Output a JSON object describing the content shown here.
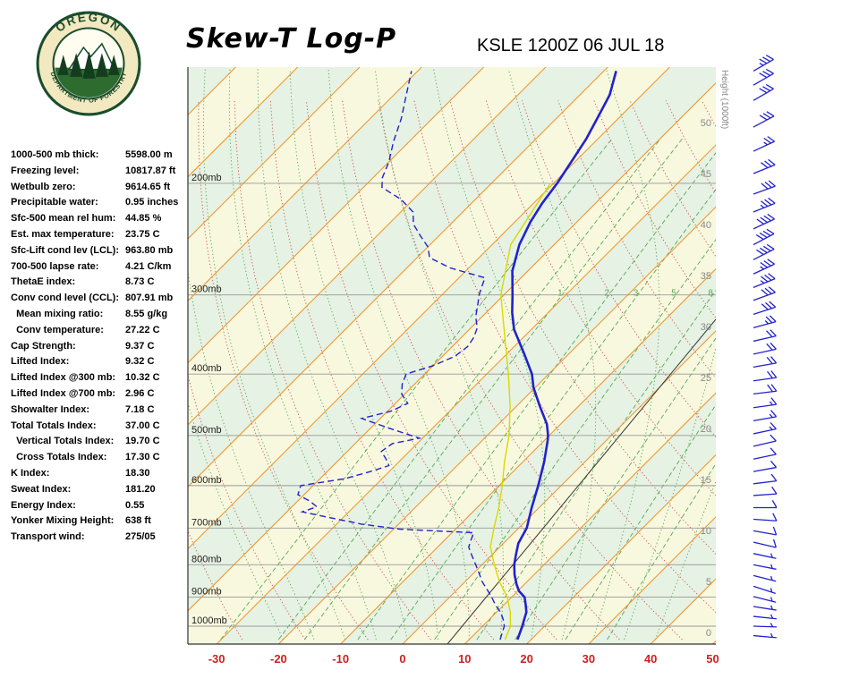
{
  "header": {
    "title": "Skew-T Log-P",
    "station": "KSLE 1200Z 06 JUL 18",
    "logo_text_top": "OREGON",
    "logo_text_bottom": "DEPARTMENT OF FORESTRY"
  },
  "indices": [
    {
      "label": "1000-500 mb thick:",
      "value": "5598.00 m"
    },
    {
      "label": "Freezing level:",
      "value": "10817.87 ft"
    },
    {
      "label": "Wetbulb zero:",
      "value": "9614.65 ft"
    },
    {
      "label": "Precipitable water:",
      "value": "0.95 inches"
    },
    {
      "label": "Sfc-500 mean rel hum:",
      "value": "44.85 %"
    },
    {
      "label": "Est. max temperature:",
      "value": "23.75 C"
    },
    {
      "label": "Sfc-Lift cond lev (LCL):",
      "value": "963.80 mb"
    },
    {
      "label": "700-500 lapse rate:",
      "value": "4.21 C/km"
    },
    {
      "label": "ThetaE index:",
      "value": "8.73 C"
    },
    {
      "label": "Conv cond level (CCL):",
      "value": "807.91 mb"
    },
    {
      "label": "  Mean mixing ratio:",
      "value": "8.55 g/kg"
    },
    {
      "label": "  Conv temperature:",
      "value": "27.22 C"
    },
    {
      "label": "Cap Strength:",
      "value": "9.37 C"
    },
    {
      "label": "Lifted Index:",
      "value": "9.32 C"
    },
    {
      "label": "Lifted Index @300 mb:",
      "value": "10.32 C"
    },
    {
      "label": "Lifted Index @700 mb:",
      "value": "2.96 C"
    },
    {
      "label": "Showalter Index:",
      "value": "7.18 C"
    },
    {
      "label": "Total Totals Index:",
      "value": "37.00 C"
    },
    {
      "label": "  Vertical Totals Index:",
      "value": "19.70 C"
    },
    {
      "label": "  Cross Totals Index:",
      "value": "17.30 C"
    },
    {
      "label": "K Index:",
      "value": "18.30"
    },
    {
      "label": "Sweat Index:",
      "value": "181.20"
    },
    {
      "label": "Energy Index:",
      "value": "0.55"
    },
    {
      "label": "Yonker Mixing Height:",
      "value": "638 ft"
    },
    {
      "label": "Transport wind:",
      "value": "275/05"
    }
  ],
  "chart_data": {
    "type": "skewt-logp",
    "title": "Skew-T Log-P",
    "station": "KSLE 1200Z 06 JUL 18",
    "temp_axis_c": [
      -30,
      -20,
      -10,
      0,
      10,
      20,
      30,
      40,
      50
    ],
    "pressure_levels_mb": [
      200,
      300,
      400,
      500,
      600,
      700,
      800,
      900,
      1000
    ],
    "pressure_label_suffix": "mb",
    "height_axis": {
      "label": "Height (1000ft)",
      "ticks_kft": [
        0,
        5,
        10,
        15,
        20,
        25,
        30,
        35,
        40,
        45,
        50
      ]
    },
    "isotherm_step_c": 10,
    "mixing_ratio_lines_gkg": [
      0.3,
      0.7,
      1,
      2,
      3,
      5,
      8,
      12,
      20,
      30
    ],
    "mixing_ratio_labels_gkg": [
      1,
      2,
      3,
      5,
      8
    ],
    "dry_adiabats_theta_c": {
      "from": -60,
      "to": 200,
      "step": 10
    },
    "moist_adiabats_t0_c": {
      "from": -20,
      "to": 40,
      "step": 5
    },
    "temperature_profile": [
      [
        1050,
        17.8
      ],
      [
        1000,
        16.4
      ],
      [
        975,
        15.6
      ],
      [
        950,
        14.8
      ],
      [
        925,
        13.5
      ],
      [
        900,
        12.1
      ],
      [
        880,
        10.2
      ],
      [
        860,
        8.8
      ],
      [
        830,
        6.9
      ],
      [
        800,
        5.2
      ],
      [
        770,
        3.8
      ],
      [
        740,
        2.4
      ],
      [
        700,
        1.3
      ],
      [
        650,
        -1.2
      ],
      [
        600,
        -3.7
      ],
      [
        550,
        -6.6
      ],
      [
        510,
        -9.4
      ],
      [
        500,
        -10.2
      ],
      [
        480,
        -12.2
      ],
      [
        450,
        -16.2
      ],
      [
        420,
        -20.3
      ],
      [
        400,
        -22.7
      ],
      [
        370,
        -27.5
      ],
      [
        340,
        -32.8
      ],
      [
        320,
        -35.8
      ],
      [
        300,
        -38.6
      ],
      [
        275,
        -42.5
      ],
      [
        250,
        -45.6
      ],
      [
        230,
        -47.5
      ],
      [
        215,
        -48.6
      ],
      [
        200,
        -49.4
      ],
      [
        185,
        -50.6
      ],
      [
        170,
        -51.9
      ],
      [
        155,
        -53.8
      ],
      [
        145,
        -55.2
      ],
      [
        133,
        -58
      ]
    ],
    "dewpoint_profile": [
      [
        1050,
        15
      ],
      [
        1000,
        13.5
      ],
      [
        975,
        12.2
      ],
      [
        950,
        10.6
      ],
      [
        925,
        8.6
      ],
      [
        900,
        6.8
      ],
      [
        875,
        4.8
      ],
      [
        850,
        2.7
      ],
      [
        825,
        0.9
      ],
      [
        800,
        -1
      ],
      [
        775,
        -3
      ],
      [
        750,
        -5
      ],
      [
        725,
        -6
      ],
      [
        712,
        -6.5
      ],
      [
        703,
        -19
      ],
      [
        690,
        -26
      ],
      [
        672,
        -33
      ],
      [
        660,
        -37.5
      ],
      [
        648,
        -36
      ],
      [
        635,
        -38
      ],
      [
        620,
        -41
      ],
      [
        600,
        -42
      ],
      [
        585,
        -36
      ],
      [
        570,
        -33
      ],
      [
        558,
        -31
      ],
      [
        545,
        -32.5
      ],
      [
        530,
        -34.5
      ],
      [
        515,
        -34
      ],
      [
        505,
        -30.5
      ],
      [
        498,
        -33
      ],
      [
        487,
        -37
      ],
      [
        470,
        -43
      ],
      [
        458,
        -39.5
      ],
      [
        445,
        -38
      ],
      [
        430,
        -40.5
      ],
      [
        415,
        -42
      ],
      [
        400,
        -43
      ],
      [
        388,
        -40
      ],
      [
        375,
        -38
      ],
      [
        362,
        -37.5
      ],
      [
        350,
        -38
      ],
      [
        338,
        -39
      ],
      [
        325,
        -41
      ],
      [
        312,
        -42.5
      ],
      [
        300,
        -44
      ],
      [
        290,
        -45
      ],
      [
        282,
        -45.8
      ],
      [
        272,
        -53
      ],
      [
        262,
        -58
      ],
      [
        252,
        -60
      ],
      [
        242,
        -63
      ],
      [
        232,
        -66
      ],
      [
        222,
        -68
      ],
      [
        212,
        -72
      ],
      [
        203,
        -77
      ],
      [
        196,
        -78.5
      ],
      [
        185,
        -80
      ],
      [
        172,
        -82.5
      ],
      [
        158,
        -85
      ],
      [
        145,
        -88
      ],
      [
        133,
        -91
      ]
    ],
    "wetbulb_profile": [
      [
        1050,
        15.8
      ],
      [
        1000,
        14.5
      ],
      [
        950,
        12.2
      ],
      [
        900,
        9.3
      ],
      [
        850,
        5.5
      ],
      [
        800,
        2.0
      ],
      [
        750,
        -1.5
      ],
      [
        700,
        -4.0
      ],
      [
        650,
        -6.5
      ],
      [
        600,
        -9.5
      ],
      [
        550,
        -13
      ],
      [
        500,
        -16.5
      ],
      [
        450,
        -21
      ],
      [
        400,
        -26.5
      ],
      [
        350,
        -33
      ],
      [
        300,
        -40.5
      ],
      [
        250,
        -47
      ],
      [
        200,
        -50.5
      ]
    ],
    "winds": [
      [
        133,
        240,
        35
      ],
      [
        140,
        240,
        32
      ],
      [
        148,
        240,
        30
      ],
      [
        163,
        242,
        30
      ],
      [
        178,
        245,
        25
      ],
      [
        193,
        248,
        30
      ],
      [
        208,
        250,
        30
      ],
      [
        222,
        248,
        35
      ],
      [
        236,
        245,
        40
      ],
      [
        250,
        242,
        40
      ],
      [
        264,
        243,
        38
      ],
      [
        278,
        245,
        35
      ],
      [
        292,
        248,
        35
      ],
      [
        306,
        250,
        30
      ],
      [
        322,
        252,
        28
      ],
      [
        338,
        255,
        25
      ],
      [
        355,
        257,
        22
      ],
      [
        372,
        258,
        20
      ],
      [
        390,
        260,
        20
      ],
      [
        410,
        262,
        20
      ],
      [
        430,
        263,
        18
      ],
      [
        452,
        262,
        15
      ],
      [
        474,
        260,
        15
      ],
      [
        497,
        258,
        15
      ],
      [
        520,
        257,
        12
      ],
      [
        545,
        258,
        10
      ],
      [
        570,
        260,
        10
      ],
      [
        596,
        263,
        10
      ],
      [
        622,
        266,
        10
      ],
      [
        650,
        270,
        10
      ],
      [
        678,
        274,
        10
      ],
      [
        707,
        280,
        10
      ],
      [
        737,
        283,
        8
      ],
      [
        768,
        282,
        7
      ],
      [
        800,
        281,
        5
      ],
      [
        832,
        284,
        5
      ],
      [
        865,
        288,
        5
      ],
      [
        898,
        284,
        5
      ],
      [
        931,
        279,
        5
      ],
      [
        965,
        276,
        5
      ],
      [
        1000,
        272,
        5
      ],
      [
        1035,
        275,
        5
      ]
    ],
    "colors": {
      "temperature": "#2222cc",
      "dewpoint": "#2222cc",
      "wetbulb": "#d9d900",
      "isotherm": "#ee9933",
      "dry_adiabat": "#cc5555",
      "moist_adiabat": "#55aa55",
      "mixing_ratio": "#55aa55",
      "band_a": "#f8f8df",
      "band_b": "#e6f2e3",
      "pressure_line": "#999999",
      "temp_label": "#cc2222",
      "wind_barb": "#2222cc",
      "height_label": "#888888",
      "pressure_label": "#222222",
      "reference_line": "#333333"
    }
  }
}
